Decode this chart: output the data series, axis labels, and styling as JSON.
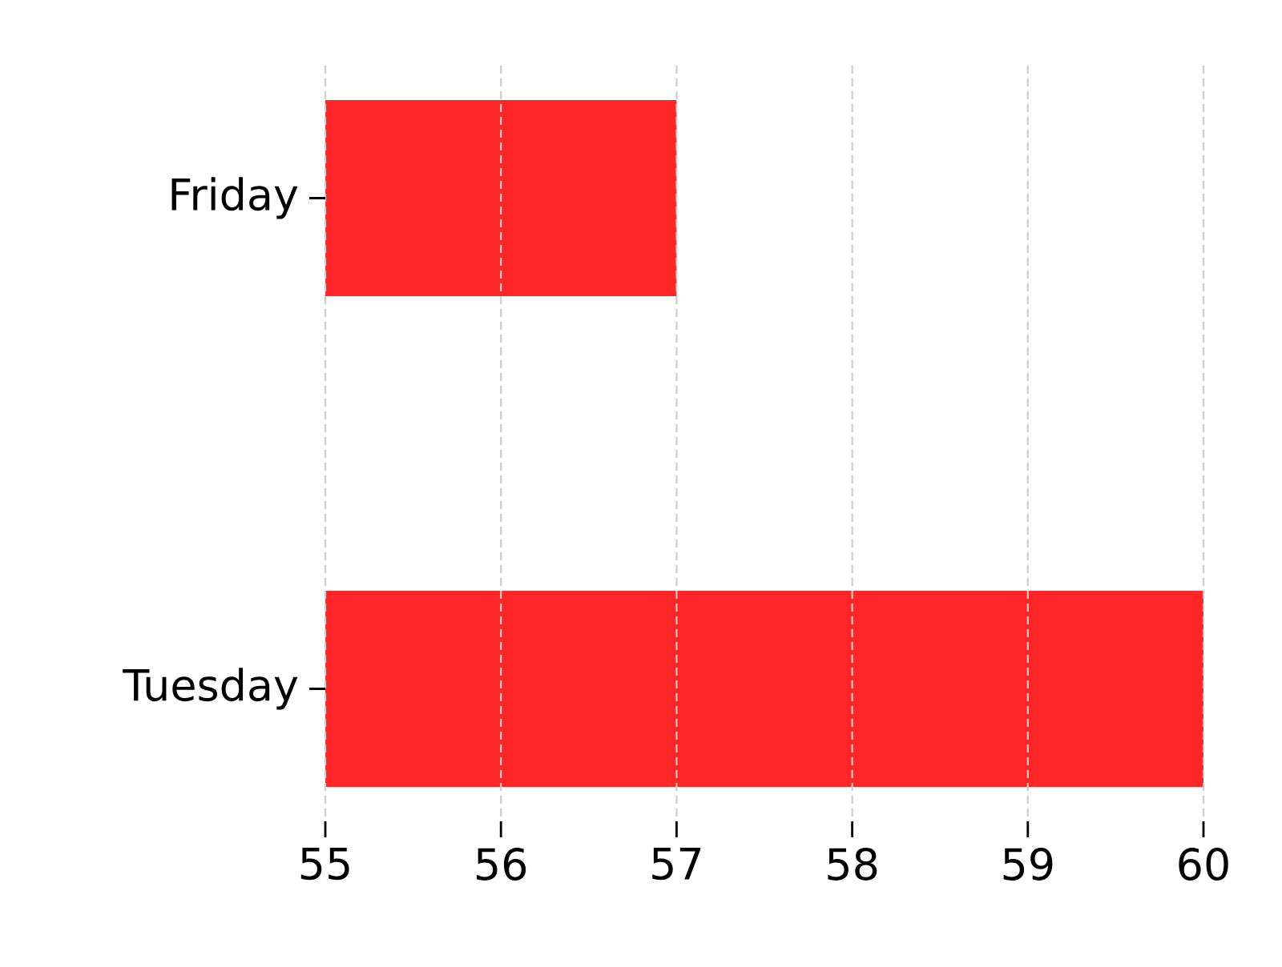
{
  "chart_data": {
    "type": "bar",
    "orientation": "horizontal",
    "categories": [
      "Friday",
      "Tuesday"
    ],
    "values": [
      57,
      60
    ],
    "color": "#fe2627",
    "xlim": [
      55,
      60
    ],
    "xticks": [
      55,
      56,
      57,
      58,
      59,
      60
    ],
    "grid": "x"
  }
}
